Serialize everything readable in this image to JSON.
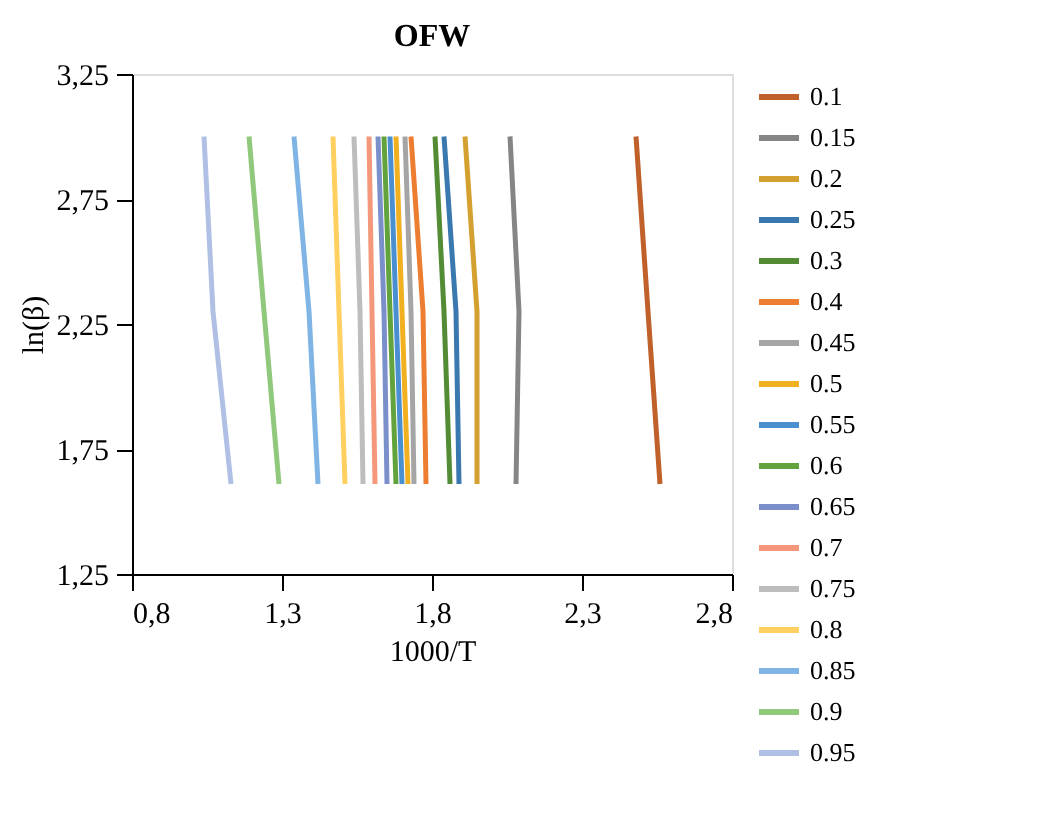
{
  "chart_data": {
    "type": "line",
    "title": "OFW",
    "xlabel": "1000/T",
    "ylabel": "ln(β)",
    "xlim": [
      0.8,
      2.8
    ],
    "ylim": [
      1.25,
      3.25
    ],
    "xticks": [
      {
        "value": 0.8,
        "label": "0,8"
      },
      {
        "value": 1.3,
        "label": "1,3"
      },
      {
        "value": 1.8,
        "label": "1,8"
      },
      {
        "value": 2.3,
        "label": "2,3"
      },
      {
        "value": 2.8,
        "label": "2,8"
      }
    ],
    "yticks": [
      {
        "value": 1.25,
        "label": "1,25"
      },
      {
        "value": 1.75,
        "label": "1,75"
      },
      {
        "value": 2.25,
        "label": "2,25"
      },
      {
        "value": 2.75,
        "label": "2,75"
      },
      {
        "value": 3.25,
        "label": "3,25"
      }
    ],
    "grid": false,
    "legend": "right",
    "marker": "none",
    "line_style": "solid",
    "series": [
      {
        "name": "0.1",
        "color": "#c0602a",
        "x": [
          2.48,
          2.52,
          2.56
        ],
        "values": [
          3.0,
          2.3,
          1.61
        ]
      },
      {
        "name": "0.15",
        "color": "#858585",
        "x": [
          2.06,
          2.09,
          2.08
        ],
        "values": [
          3.0,
          2.3,
          1.61
        ]
      },
      {
        "name": "0.2",
        "color": "#d4a030",
        "x": [
          1.91,
          1.95,
          1.95
        ],
        "values": [
          3.0,
          2.3,
          1.61
        ]
      },
      {
        "name": "0.25",
        "color": "#3a78b0",
        "x": [
          1.84,
          1.88,
          1.89
        ],
        "values": [
          3.0,
          2.3,
          1.61
        ]
      },
      {
        "name": "0.3",
        "color": "#548b35",
        "x": [
          1.81,
          1.84,
          1.86
        ],
        "values": [
          3.0,
          2.3,
          1.61
        ]
      },
      {
        "name": "0.4",
        "color": "#ed7d31",
        "x": [
          1.73,
          1.77,
          1.78
        ],
        "values": [
          3.0,
          2.3,
          1.61
        ]
      },
      {
        "name": "0.45",
        "color": "#a5a5a5",
        "x": [
          1.71,
          1.73,
          1.74
        ],
        "values": [
          3.0,
          2.3,
          1.61
        ]
      },
      {
        "name": "0.5",
        "color": "#f0b020",
        "x": [
          1.68,
          1.7,
          1.72
        ],
        "values": [
          3.0,
          2.3,
          1.61
        ]
      },
      {
        "name": "0.55",
        "color": "#4a90d0",
        "x": [
          1.66,
          1.68,
          1.7
        ],
        "values": [
          3.0,
          2.3,
          1.61
        ]
      },
      {
        "name": "0.6",
        "color": "#62a33e",
        "x": [
          1.64,
          1.66,
          1.68
        ],
        "values": [
          3.0,
          2.3,
          1.61
        ]
      },
      {
        "name": "0.65",
        "color": "#7b8fcb",
        "x": [
          1.62,
          1.64,
          1.65
        ],
        "values": [
          3.0,
          2.3,
          1.61
        ]
      },
      {
        "name": "0.7",
        "color": "#f4977a",
        "x": [
          1.59,
          1.6,
          1.61
        ],
        "values": [
          3.0,
          2.3,
          1.61
        ]
      },
      {
        "name": "0.75",
        "color": "#bdbdbd",
        "x": [
          1.54,
          1.56,
          1.57
        ],
        "values": [
          3.0,
          2.3,
          1.61
        ]
      },
      {
        "name": "0.8",
        "color": "#ffd060",
        "x": [
          1.47,
          1.49,
          1.51
        ],
        "values": [
          3.0,
          2.3,
          1.61
        ]
      },
      {
        "name": "0.85",
        "color": "#80b4e4",
        "x": [
          1.34,
          1.39,
          1.42
        ],
        "values": [
          3.0,
          2.3,
          1.61
        ]
      },
      {
        "name": "0.9",
        "color": "#90c87c",
        "x": [
          1.19,
          1.24,
          1.29
        ],
        "values": [
          3.0,
          2.3,
          1.61
        ]
      },
      {
        "name": "0.95",
        "color": "#b0c0e4",
        "x": [
          1.04,
          1.07,
          1.13
        ],
        "values": [
          3.0,
          2.3,
          1.61
        ]
      }
    ]
  }
}
